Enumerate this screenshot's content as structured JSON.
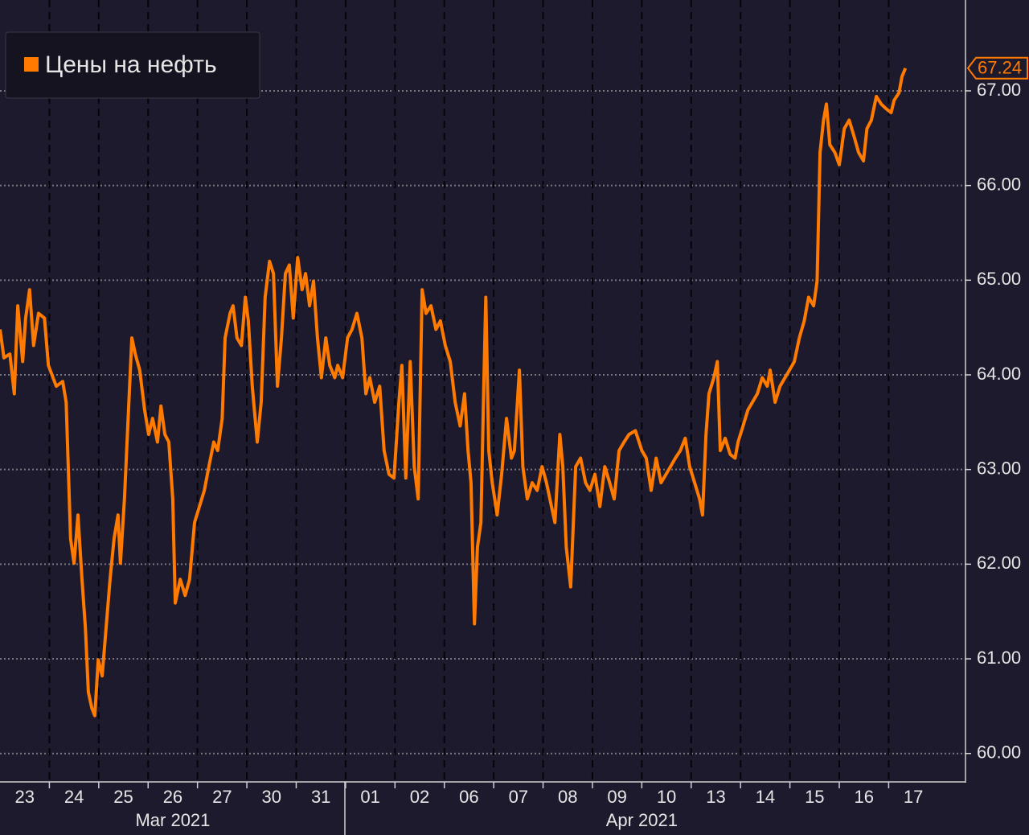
{
  "chart_data": {
    "type": "line",
    "legend": "top-left",
    "grid": true,
    "xlim": [
      0,
      19.54
    ],
    "ylim": [
      59.7,
      67.96
    ],
    "yticks": [
      {
        "value": 60,
        "label": "60.00"
      },
      {
        "value": 61,
        "label": "61.00"
      },
      {
        "value": 62,
        "label": "62.00"
      },
      {
        "value": 63,
        "label": "63.00"
      },
      {
        "value": 64,
        "label": "64.00"
      },
      {
        "value": 65,
        "label": "65.00"
      },
      {
        "value": 66,
        "label": "66.00"
      },
      {
        "value": 67,
        "label": "67.00"
      }
    ],
    "xticks": [
      {
        "value": 0.5,
        "label": "23"
      },
      {
        "value": 1.5,
        "label": "24"
      },
      {
        "value": 2.5,
        "label": "25"
      },
      {
        "value": 3.5,
        "label": "26"
      },
      {
        "value": 4.5,
        "label": "27"
      },
      {
        "value": 5.5,
        "label": "30"
      },
      {
        "value": 6.5,
        "label": "31"
      },
      {
        "value": 7.5,
        "label": "01"
      },
      {
        "value": 8.5,
        "label": "02"
      },
      {
        "value": 9.5,
        "label": "06"
      },
      {
        "value": 10.5,
        "label": "07"
      },
      {
        "value": 11.5,
        "label": "08"
      },
      {
        "value": 12.5,
        "label": "09"
      },
      {
        "value": 13.5,
        "label": "10"
      },
      {
        "value": 14.5,
        "label": "13"
      },
      {
        "value": 15.5,
        "label": "14"
      },
      {
        "value": 16.5,
        "label": "15"
      },
      {
        "value": 17.5,
        "label": "16"
      },
      {
        "value": 18.5,
        "label": "17"
      }
    ],
    "month_ticks": [
      {
        "value": 3.5,
        "label": "Mar 2021"
      },
      {
        "value": 13,
        "label": "Apr 2021"
      }
    ],
    "series": [
      {
        "name": "Цены на нефть",
        "color": "#ff7a00",
        "x": [
          0,
          0.08,
          0.2,
          0.29,
          0.36,
          0.46,
          0.52,
          0.6,
          0.68,
          0.78,
          0.9,
          0.98,
          1.14,
          1.27,
          1.34,
          1.43,
          1.5,
          1.58,
          1.66,
          1.73,
          1.79,
          1.86,
          1.92,
          1.99,
          2.07,
          2.15,
          2.23,
          2.31,
          2.39,
          2.44,
          2.52,
          2.61,
          2.67,
          2.74,
          2.83,
          2.93,
          3.01,
          3.09,
          3.19,
          3.26,
          3.34,
          3.42,
          3.5,
          3.55,
          3.65,
          3.75,
          3.84,
          3.94,
          4.04,
          4.14,
          4.23,
          4.33,
          4.41,
          4.5,
          4.56,
          4.66,
          4.72,
          4.8,
          4.89,
          4.97,
          5.03,
          5.11,
          5.21,
          5.29,
          5.37,
          5.46,
          5.54,
          5.62,
          5.7,
          5.78,
          5.86,
          5.94,
          6.03,
          6.12,
          6.19,
          6.27,
          6.35,
          6.43,
          6.51,
          6.6,
          6.68,
          6.78,
          6.84,
          6.94,
          7.04,
          7.13,
          7.23,
          7.33,
          7.41,
          7.49,
          7.59,
          7.69,
          7.78,
          7.88,
          7.98,
          8.08,
          8.14,
          8.22,
          8.31,
          8.39,
          8.47,
          8.55,
          8.63,
          8.73,
          8.83,
          8.92,
          9.02,
          9.12,
          9.22,
          9.32,
          9.41,
          9.48,
          9.54,
          9.61,
          9.67,
          9.74,
          9.8,
          9.84,
          9.9,
          9.97,
          10.07,
          10.16,
          10.26,
          10.36,
          10.42,
          10.52,
          10.59,
          10.68,
          10.78,
          10.88,
          10.98,
          11.07,
          11.17,
          11.24,
          11.34,
          11.4,
          11.47,
          11.56,
          11.66,
          11.76,
          11.86,
          11.95,
          12.05,
          12.15,
          12.25,
          12.35,
          12.44,
          12.54,
          12.64,
          12.74,
          12.87,
          13.0,
          13.09,
          13.19,
          13.29,
          13.39,
          13.49,
          13.58,
          13.68,
          13.78,
          13.88,
          13.97,
          14.07,
          14.17,
          14.23,
          14.3,
          14.36,
          14.46,
          14.53,
          14.59,
          14.69,
          14.79,
          14.89,
          14.95,
          15.05,
          15.15,
          15.24,
          15.34,
          15.44,
          15.54,
          15.6,
          15.7,
          15.8,
          15.9,
          15.99,
          16.09,
          16.19,
          16.29,
          16.38,
          16.48,
          16.55,
          16.61,
          16.68,
          16.74,
          16.81,
          16.91,
          17.0,
          17.1,
          17.2,
          17.3,
          17.39,
          17.49,
          17.56,
          17.65,
          17.75,
          17.85,
          17.95,
          18.05,
          18.11,
          18.21,
          18.27,
          18.34
        ],
        "values": [
          64.48,
          64.18,
          64.22,
          63.8,
          64.73,
          64.14,
          64.6,
          64.9,
          64.31,
          64.65,
          64.6,
          64.1,
          63.88,
          63.93,
          63.71,
          62.27,
          62.01,
          62.52,
          61.85,
          61.33,
          60.65,
          60.48,
          60.4,
          60.99,
          60.82,
          61.33,
          61.84,
          62.27,
          62.52,
          62.01,
          62.69,
          63.71,
          64.39,
          64.22,
          64.05,
          63.63,
          63.37,
          63.54,
          63.29,
          63.67,
          63.37,
          63.29,
          62.69,
          61.59,
          61.84,
          61.67,
          61.84,
          62.44,
          62.61,
          62.78,
          63.03,
          63.29,
          63.2,
          63.54,
          64.39,
          64.65,
          64.73,
          64.39,
          64.31,
          64.82,
          64.57,
          63.88,
          63.29,
          63.71,
          64.82,
          65.2,
          65.07,
          63.88,
          64.39,
          65.07,
          65.16,
          64.6,
          65.24,
          64.9,
          65.07,
          64.73,
          64.99,
          64.39,
          63.97,
          64.39,
          64.1,
          63.97,
          64.1,
          63.97,
          64.39,
          64.48,
          64.65,
          64.39,
          63.8,
          63.97,
          63.71,
          63.88,
          63.2,
          62.95,
          62.91,
          63.71,
          64.1,
          62.91,
          64.14,
          63.03,
          62.69,
          64.9,
          64.65,
          64.73,
          64.48,
          64.57,
          64.31,
          64.14,
          63.71,
          63.46,
          63.8,
          63.2,
          62.86,
          61.37,
          62.18,
          62.44,
          63.88,
          64.82,
          63.2,
          62.86,
          62.52,
          62.95,
          63.54,
          63.12,
          63.2,
          64.05,
          63.03,
          62.69,
          62.86,
          62.78,
          63.03,
          62.86,
          62.61,
          62.44,
          63.37,
          63.03,
          62.18,
          61.76,
          63.03,
          63.12,
          62.86,
          62.78,
          62.95,
          62.61,
          63.03,
          62.86,
          62.69,
          63.2,
          63.29,
          63.37,
          63.41,
          63.2,
          63.12,
          62.78,
          63.12,
          62.86,
          62.95,
          63.03,
          63.12,
          63.2,
          63.33,
          63.03,
          62.86,
          62.69,
          62.52,
          63.37,
          63.8,
          63.97,
          64.14,
          63.2,
          63.33,
          63.16,
          63.12,
          63.29,
          63.46,
          63.63,
          63.71,
          63.8,
          63.97,
          63.88,
          64.05,
          63.71,
          63.88,
          63.97,
          64.05,
          64.14,
          64.39,
          64.57,
          64.82,
          64.73,
          64.99,
          66.35,
          66.69,
          66.86,
          66.43,
          66.35,
          66.22,
          66.6,
          66.69,
          66.52,
          66.35,
          66.26,
          66.6,
          66.69,
          66.94,
          66.86,
          66.81,
          66.77,
          66.9,
          66.98,
          67.15,
          67.24
        ]
      }
    ]
  }
}
